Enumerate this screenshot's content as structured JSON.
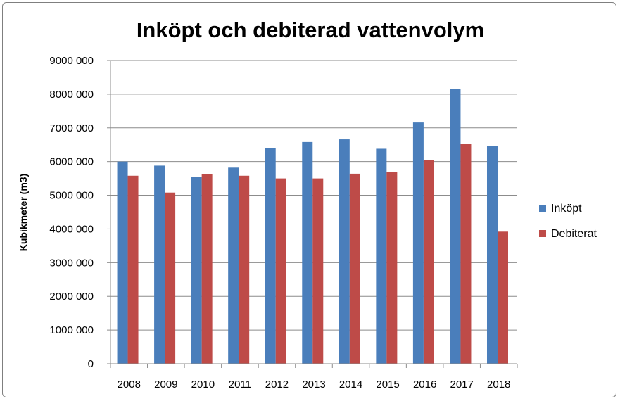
{
  "chart_data": {
    "type": "bar",
    "title": "Inköpt och debiterad vattenvolym",
    "xlabel": "",
    "ylabel": "Kubikmeter (m3)",
    "categories": [
      "2008",
      "2009",
      "2010",
      "2011",
      "2012",
      "2013",
      "2014",
      "2015",
      "2016",
      "2017",
      "2018"
    ],
    "series": [
      {
        "name": "Inköpt",
        "color": "#4a7ebb",
        "values": [
          6000000,
          5880000,
          5550000,
          5820000,
          6400000,
          6580000,
          6660000,
          6380000,
          7160000,
          8160000,
          6460000
        ]
      },
      {
        "name": "Debiterat",
        "color": "#be4b48",
        "values": [
          5580000,
          5080000,
          5620000,
          5580000,
          5500000,
          5500000,
          5640000,
          5680000,
          6040000,
          6520000,
          3920000
        ]
      }
    ],
    "ylim": [
      0,
      9000000
    ],
    "yticks": [
      0,
      1000000,
      2000000,
      3000000,
      4000000,
      5000000,
      6000000,
      7000000,
      8000000,
      9000000
    ],
    "ytick_labels": [
      "0",
      "1000 000",
      "2000 000",
      "3000 000",
      "4000 000",
      "5000 000",
      "6000 000",
      "7000 000",
      "8000 000",
      "9000 000"
    ],
    "grid": true,
    "legend_position": "right"
  }
}
